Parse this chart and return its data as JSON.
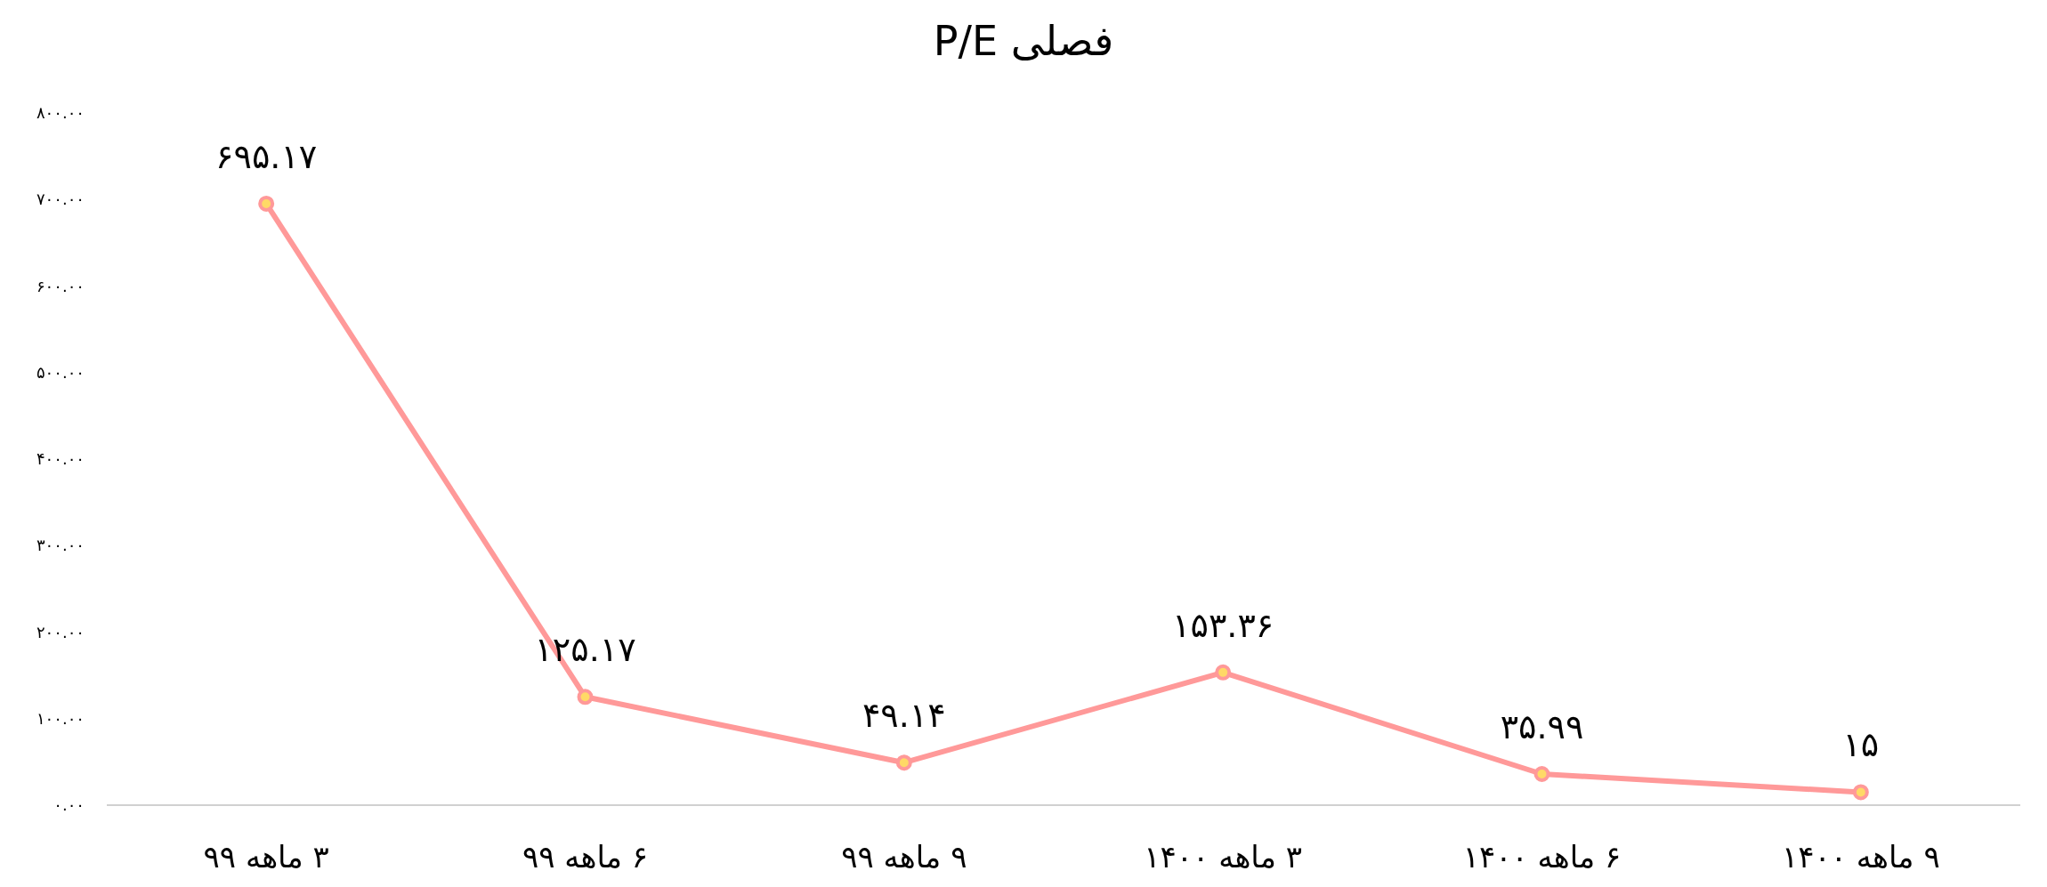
{
  "chart_data": {
    "type": "line",
    "title": "P/E فصلی",
    "categories": [
      "۳ ماهه ۹۹",
      "۶ ماهه ۹۹",
      "۹ ماهه ۹۹",
      "۳ ماهه ۱۴۰۰",
      "۶ ماهه ۱۴۰۰",
      "۹ ماهه ۱۴۰۰"
    ],
    "values": [
      695.17,
      125.17,
      49.14,
      153.36,
      35.99,
      15
    ],
    "value_labels": [
      "۶۹۵.۱۷",
      "۱۲۵.۱۷",
      "۴۹.۱۴",
      "۱۵۳.۳۶",
      "۳۵.۹۹",
      "۱۵"
    ],
    "color": "#ff9999",
    "marker": "circle",
    "ylim": [
      0,
      800
    ],
    "yticks": [
      {
        "value": 0,
        "label": "۰.۰۰"
      },
      {
        "value": 100,
        "label": "۱۰۰.۰۰"
      },
      {
        "value": 200,
        "label": "۲۰۰.۰۰"
      },
      {
        "value": 300,
        "label": "۳۰۰.۰۰"
      },
      {
        "value": 400,
        "label": "۴۰۰.۰۰"
      },
      {
        "value": 500,
        "label": "۵۰۰.۰۰"
      },
      {
        "value": 600,
        "label": "۶۰۰.۰۰"
      },
      {
        "value": 700,
        "label": "۷۰۰.۰۰"
      },
      {
        "value": 800,
        "label": "۸۰۰.۰۰"
      }
    ]
  }
}
